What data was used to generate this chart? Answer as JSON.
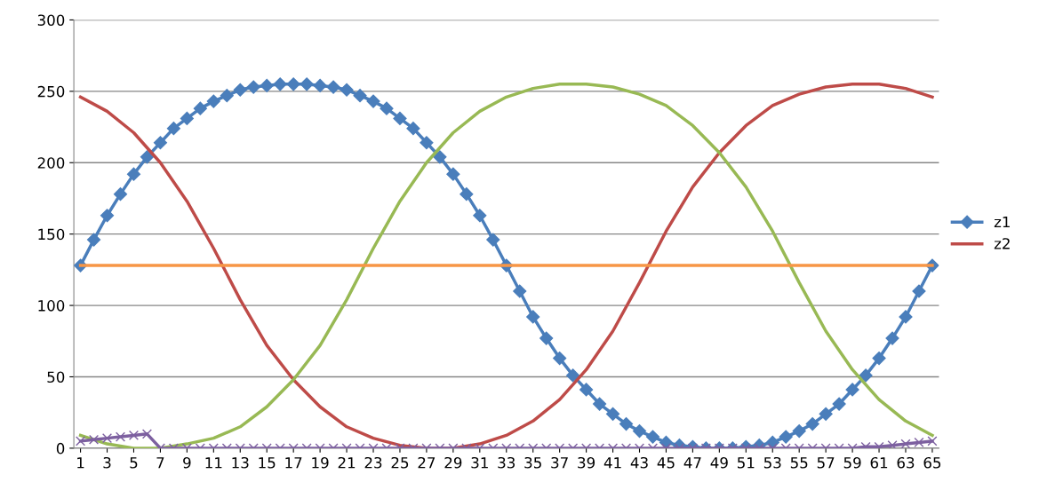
{
  "chart_data": {
    "type": "line",
    "xlim": [
      0.5,
      65.5
    ],
    "xticks": [
      1,
      3,
      5,
      7,
      9,
      11,
      13,
      15,
      17,
      19,
      21,
      23,
      25,
      27,
      29,
      31,
      33,
      35,
      37,
      39,
      41,
      43,
      45,
      47,
      49,
      51,
      53,
      55,
      57,
      59,
      61,
      63,
      65
    ],
    "ylim": [
      0,
      300
    ],
    "yticks": [
      0,
      50,
      100,
      150,
      200,
      250,
      300
    ],
    "grid": "y",
    "legend": "right",
    "series": [
      {
        "name": "z1",
        "color": "#4a7ebb",
        "marker": "diamond",
        "x": [
          1,
          2,
          3,
          4,
          5,
          6,
          7,
          8,
          9,
          10,
          11,
          12,
          13,
          14,
          15,
          16,
          17,
          18,
          19,
          20,
          21,
          22,
          23,
          24,
          25,
          26,
          27,
          28,
          29,
          30,
          31,
          32,
          33,
          34,
          35,
          36,
          37,
          38,
          39,
          40,
          41,
          42,
          43,
          44,
          45,
          46,
          47,
          48,
          49,
          50,
          51,
          52,
          53,
          54,
          55,
          56,
          57,
          58,
          59,
          60,
          61,
          62,
          63,
          64,
          65
        ],
        "values": [
          128,
          146,
          163,
          178,
          192,
          204,
          214,
          224,
          231,
          238,
          243,
          247,
          251,
          253,
          254,
          255,
          255,
          255,
          254,
          253,
          251,
          247,
          243,
          238,
          231,
          224,
          214,
          204,
          192,
          178,
          163,
          146,
          128,
          110,
          92,
          77,
          63,
          51,
          41,
          31,
          24,
          17,
          12,
          8,
          4,
          2,
          1,
          0,
          0,
          0,
          1,
          2,
          4,
          8,
          12,
          17,
          24,
          31,
          41,
          51,
          63,
          77,
          92,
          110,
          128
        ]
      },
      {
        "name": "z2",
        "color": "#be4b48",
        "marker": "none",
        "x": [
          1,
          3,
          5,
          7,
          9,
          11,
          13,
          15,
          17,
          19,
          21,
          23,
          25,
          27,
          29,
          31,
          33,
          35,
          37,
          39,
          41,
          43,
          45,
          47,
          49,
          51,
          53,
          55,
          57,
          59,
          61,
          63,
          65
        ],
        "values": [
          246,
          236,
          221,
          200,
          173,
          140,
          104,
          72,
          48,
          29,
          15,
          7,
          2,
          0,
          0,
          3,
          9,
          19,
          34,
          55,
          82,
          116,
          152,
          183,
          207,
          226,
          240,
          248,
          253,
          255,
          255,
          252,
          246
        ]
      },
      {
        "color": "#98b954",
        "marker": "none",
        "x": [
          1,
          3,
          5,
          7,
          9,
          11,
          13,
          15,
          17,
          19,
          21,
          23,
          25,
          27,
          29,
          31,
          33,
          35,
          37,
          39,
          41,
          43,
          45,
          47,
          49,
          51,
          53,
          55,
          57,
          59,
          61,
          63,
          65
        ],
        "values": [
          9,
          3,
          0,
          0,
          3,
          7,
          15,
          29,
          48,
          72,
          104,
          140,
          173,
          200,
          221,
          236,
          246,
          252,
          255,
          255,
          253,
          248,
          240,
          226,
          207,
          183,
          152,
          116,
          82,
          55,
          34,
          19,
          9
        ]
      },
      {
        "color": "#f79646",
        "marker": "none",
        "x": [
          1,
          65
        ],
        "values": [
          128,
          128
        ]
      },
      {
        "color": "#7d60a0",
        "marker": "cross",
        "x": [
          1,
          2,
          3,
          4,
          5,
          6,
          7,
          8,
          9,
          10,
          11,
          12,
          13,
          14,
          15,
          16,
          17,
          18,
          19,
          20,
          21,
          22,
          23,
          24,
          25,
          26,
          27,
          28,
          29,
          30,
          31,
          32,
          33,
          34,
          35,
          36,
          37,
          38,
          39,
          40,
          41,
          42,
          43,
          44,
          45,
          46,
          47,
          48,
          49,
          50,
          51,
          52,
          53,
          54,
          55,
          56,
          57,
          58,
          59,
          60,
          61,
          62,
          63,
          64,
          65
        ],
        "values": [
          5,
          6,
          7,
          8,
          9,
          10,
          0,
          0,
          0,
          0,
          0,
          0,
          0,
          0,
          0,
          0,
          0,
          0,
          0,
          0,
          0,
          0,
          0,
          0,
          0,
          0,
          0,
          0,
          0,
          0,
          0,
          0,
          0,
          0,
          0,
          0,
          0,
          0,
          0,
          0,
          0,
          0,
          0,
          0,
          0,
          0,
          0,
          0,
          0,
          0,
          0,
          0,
          0,
          0,
          0,
          0,
          0,
          0,
          0,
          1,
          1,
          2,
          3,
          4,
          5
        ]
      }
    ]
  }
}
